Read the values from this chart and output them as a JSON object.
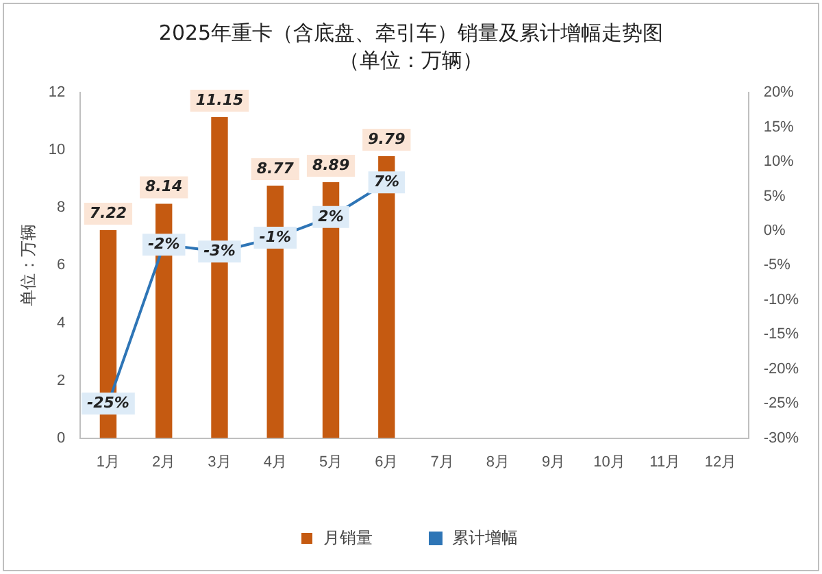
{
  "chart_data": {
    "type": "bar",
    "title": "2025年重卡（含底盘、牵引车）销量及累计增幅走势图",
    "subtitle": "（单位：万辆）",
    "ylabel": "单位：万辆",
    "categories": [
      "1月",
      "2月",
      "3月",
      "4月",
      "5月",
      "6月",
      "7月",
      "8月",
      "9月",
      "10月",
      "11月",
      "12月"
    ],
    "series": [
      {
        "name": "月销量",
        "color": "#c55a11",
        "values": [
          7.22,
          8.14,
          11.15,
          8.77,
          8.89,
          9.79,
          null,
          null,
          null,
          null,
          null,
          null
        ]
      },
      {
        "name": "累计增幅",
        "type": "line",
        "axis": "y2",
        "color": "#2e75b6",
        "values": [
          -25,
          -2,
          -3,
          -1,
          2,
          7,
          null,
          null,
          null,
          null,
          null,
          null
        ],
        "value_labels": [
          "-25%",
          "-2%",
          "-3%",
          "-1%",
          "2%",
          "7%",
          null,
          null,
          null,
          null,
          null,
          null
        ]
      }
    ],
    "ylim": [
      0,
      12
    ],
    "yticks": [
      0,
      2,
      4,
      6,
      8,
      10,
      12
    ],
    "y2lim": [
      -30,
      20
    ],
    "y2ticks": [
      {
        "value": -30,
        "label": "-30%"
      },
      {
        "value": -25,
        "label": "-25%"
      },
      {
        "value": -20,
        "label": "-20%"
      },
      {
        "value": -15,
        "label": "-15%"
      },
      {
        "value": -10,
        "label": "-10%"
      },
      {
        "value": -5,
        "label": "-5%"
      },
      {
        "value": 0,
        "label": "0%"
      },
      {
        "value": 5,
        "label": "5%"
      },
      {
        "value": 10,
        "label": "10%"
      },
      {
        "value": 15,
        "label": "15%"
      },
      {
        "value": 20,
        "label": "20%"
      }
    ],
    "data_labels": true,
    "grid": false,
    "legend": "bottom",
    "marker": "square",
    "line_style": "solid"
  }
}
